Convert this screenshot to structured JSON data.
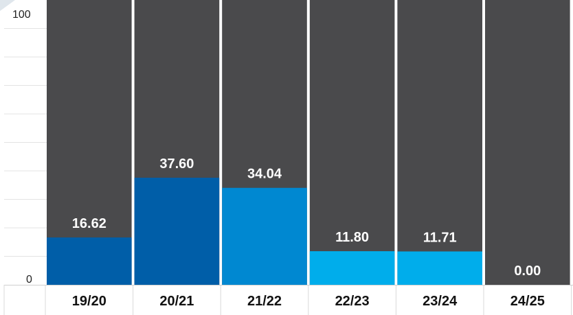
{
  "chart_data": {
    "type": "bar",
    "categories": [
      "19/20",
      "20/21",
      "21/22",
      "22/23",
      "23/24",
      "24/25"
    ],
    "values": [
      16.62,
      37.6,
      34.04,
      11.8,
      11.71,
      0.0
    ],
    "value_labels": [
      "16.62",
      "37.60",
      "34.04",
      "11.80",
      "11.71",
      "0.00"
    ],
    "bar_colors": [
      "#005ea8",
      "#005ea8",
      "#0088d1",
      "#00adeb",
      "#00adeb",
      "#00adeb"
    ],
    "background_color": "#4a4a4c",
    "ylim": [
      0,
      100
    ],
    "y_ticks": [
      "0",
      "100"
    ],
    "grid": true,
    "title": "",
    "xlabel": "",
    "ylabel": ""
  }
}
